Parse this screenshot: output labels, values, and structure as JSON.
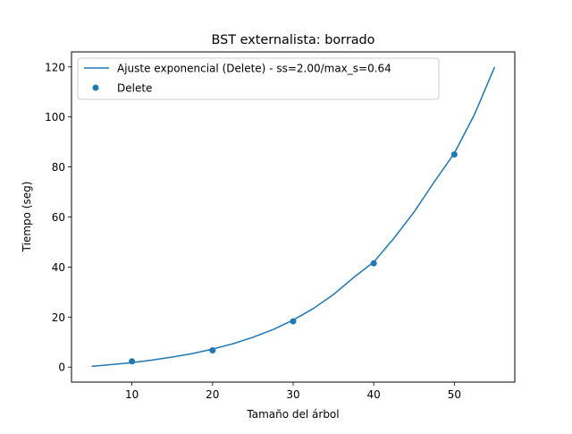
{
  "chart_data": {
    "type": "scatter",
    "title": "BST externalista: borrado",
    "xlabel": "Tamaño del árbol",
    "ylabel": "Tiempo (seg)",
    "xlim": [
      2.5,
      57.5
    ],
    "ylim": [
      -6,
      126
    ],
    "xticks": [
      10,
      20,
      30,
      40,
      50
    ],
    "yticks": [
      0,
      20,
      40,
      60,
      80,
      100,
      120
    ],
    "grid": false,
    "legend_position": "upper-left",
    "series": [
      {
        "name": "Ajuste exponencial (Delete) - ss=2.00/max_s=0.64",
        "kind": "line",
        "color": "#1f77b4",
        "x": [
          5,
          7.5,
          10,
          12.5,
          15,
          17.5,
          20,
          22.5,
          25,
          27.5,
          30,
          32.5,
          35,
          37.5,
          40,
          42.5,
          45,
          47.5,
          50,
          52.5,
          55
        ],
        "y": [
          0.3,
          1.0,
          1.8,
          2.8,
          4.0,
          5.4,
          7.2,
          9.3,
          11.9,
          15.0,
          18.8,
          23.4,
          29.0,
          35.8,
          42.0,
          51.5,
          62.0,
          74.0,
          85.5,
          101.0,
          120.0
        ]
      },
      {
        "name": "Delete",
        "kind": "scatter",
        "color": "#1f77b4",
        "x": [
          10,
          20,
          30,
          40,
          50
        ],
        "y": [
          2.3,
          6.7,
          18.3,
          41.5,
          85.0
        ]
      }
    ]
  }
}
